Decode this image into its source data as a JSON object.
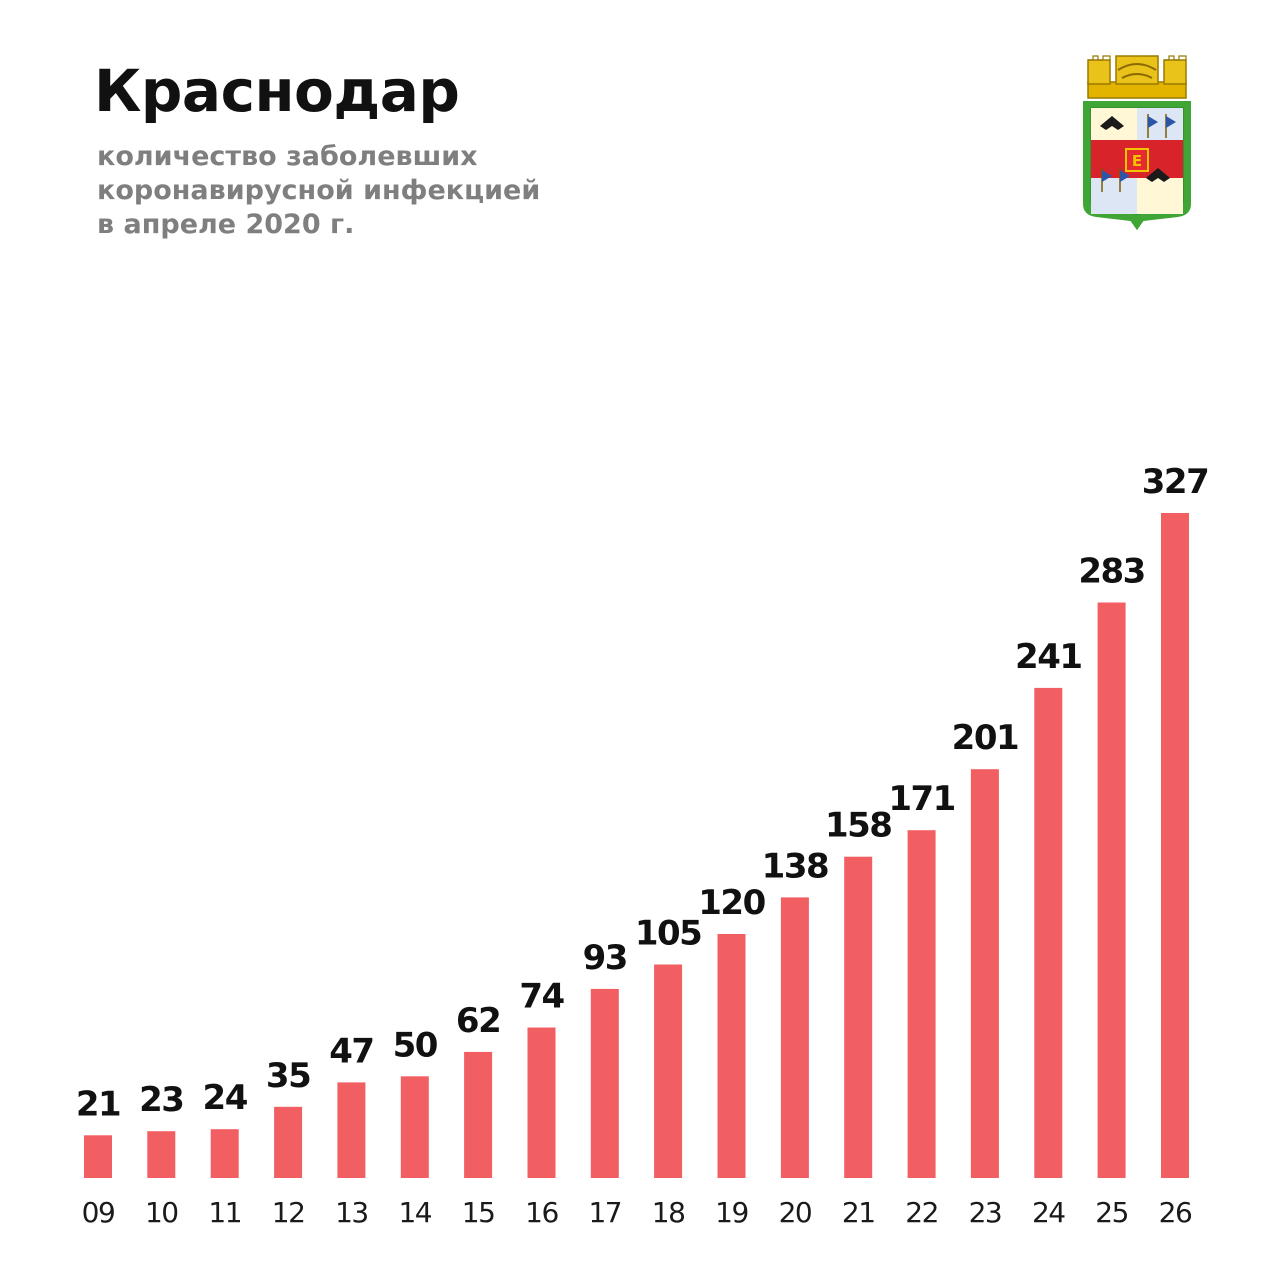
{
  "header": {
    "title": "Краснодар",
    "subtitle_lines": [
      "количество заболевших",
      "коронавирусной инфекцией",
      "в апреле 2020 г."
    ]
  },
  "emblem": {
    "icon": "krasnodar-coat-of-arms"
  },
  "colors": {
    "bar": "#f25f62",
    "value_text": "#111111",
    "category_text": "#1a1a1a",
    "title": "#111111",
    "subtitle": "#7f7f7f"
  },
  "chart_data": {
    "type": "bar",
    "title": "Краснодар",
    "subtitle": "количество заболевших коронавирусной инфекцией в апреле 2020 г.",
    "xlabel": "",
    "ylabel": "",
    "categories": [
      "09",
      "10",
      "11",
      "12",
      "13",
      "14",
      "15",
      "16",
      "17",
      "18",
      "19",
      "20",
      "21",
      "22",
      "23",
      "24",
      "25",
      "26"
    ],
    "values": [
      21,
      23,
      24,
      35,
      47,
      50,
      62,
      74,
      93,
      105,
      120,
      138,
      158,
      171,
      201,
      241,
      283,
      327
    ],
    "ylim": [
      0,
      327
    ],
    "grid": false,
    "legend": "none"
  }
}
